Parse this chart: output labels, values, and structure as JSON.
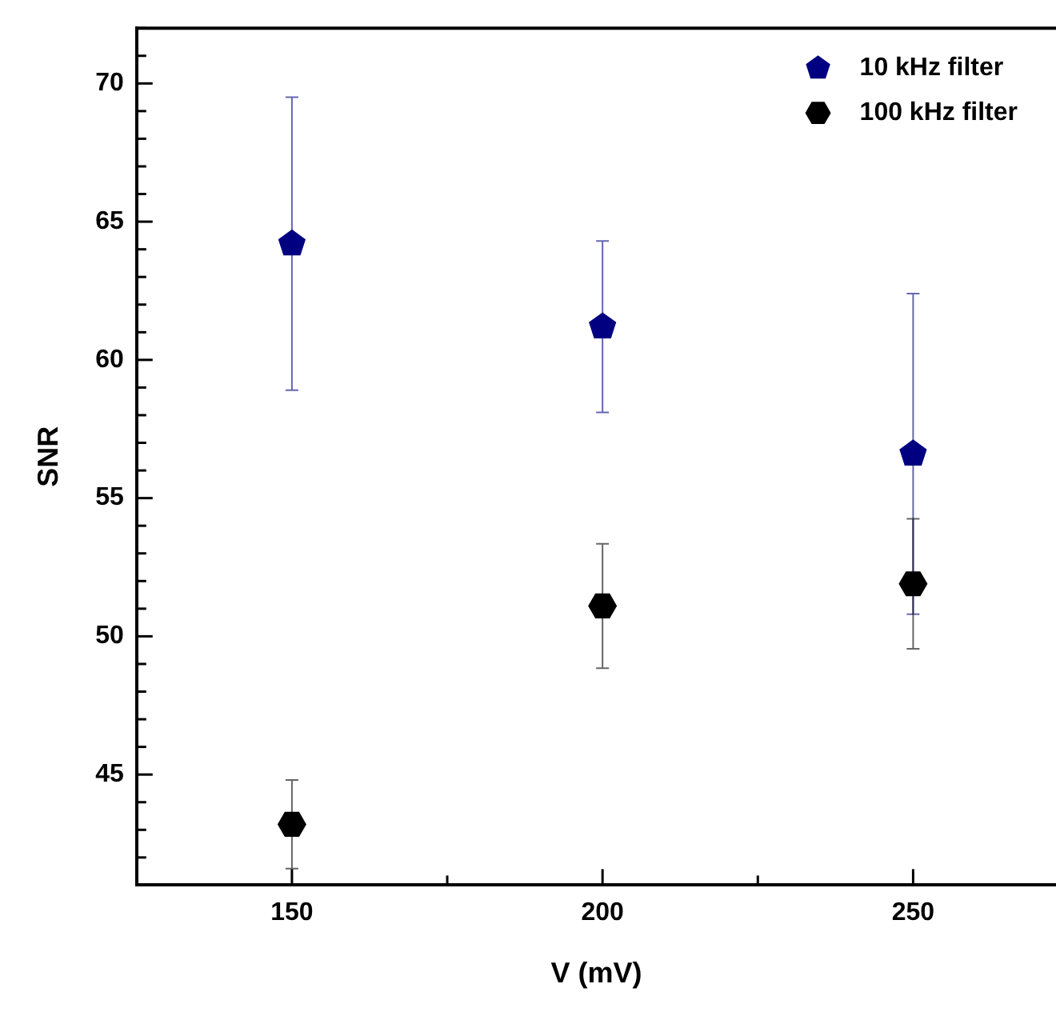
{
  "chart_data": {
    "type": "scatter",
    "xlabel": "V (mV)",
    "ylabel": "SNR",
    "x": [
      150,
      200,
      250
    ],
    "series": [
      {
        "name": "10 kHz filter",
        "color": "#000080",
        "values": [
          64.2,
          61.2,
          56.6
        ],
        "errors": [
          5.3,
          3.1,
          5.8
        ]
      },
      {
        "name": "100 kHz filter",
        "color": "#000000",
        "values": [
          43.2,
          51.1,
          51.9
        ],
        "errors": [
          1.6,
          2.25,
          2.35
        ]
      }
    ],
    "xlim": [
      125,
      273
    ],
    "xticks": [
      150,
      {
        "value": 175,
        "label": null
      },
      200,
      {
        "value": 225,
        "label": null
      },
      250
    ],
    "ylim": [
      41,
      72
    ],
    "yticks": [
      {
        "value": 41,
        "label": null
      },
      {
        "value": 42,
        "label": null
      },
      {
        "value": 43,
        "label": null
      },
      {
        "value": 44,
        "label": null
      },
      45,
      {
        "value": 46,
        "label": null
      },
      {
        "value": 47,
        "label": null
      },
      {
        "value": 48,
        "label": null
      },
      {
        "value": 49,
        "label": null
      },
      50,
      {
        "value": 51,
        "label": null
      },
      {
        "value": 52,
        "label": null
      },
      {
        "value": 53,
        "label": null
      },
      {
        "value": 54,
        "label": null
      },
      55,
      {
        "value": 56,
        "label": null
      },
      {
        "value": 57,
        "label": null
      },
      {
        "value": 58,
        "label": null
      },
      {
        "value": 59,
        "label": null
      },
      60,
      {
        "value": 61,
        "label": null
      },
      {
        "value": 62,
        "label": null
      },
      {
        "value": 63,
        "label": null
      },
      {
        "value": 64,
        "label": null
      },
      65,
      {
        "value": 66,
        "label": null
      },
      {
        "value": 67,
        "label": null
      },
      {
        "value": 68,
        "label": null
      },
      {
        "value": 69,
        "label": null
      },
      70,
      {
        "value": 71,
        "label": null
      },
      {
        "value": 72,
        "label": null
      }
    ],
    "grid": false,
    "legend": "top right"
  }
}
